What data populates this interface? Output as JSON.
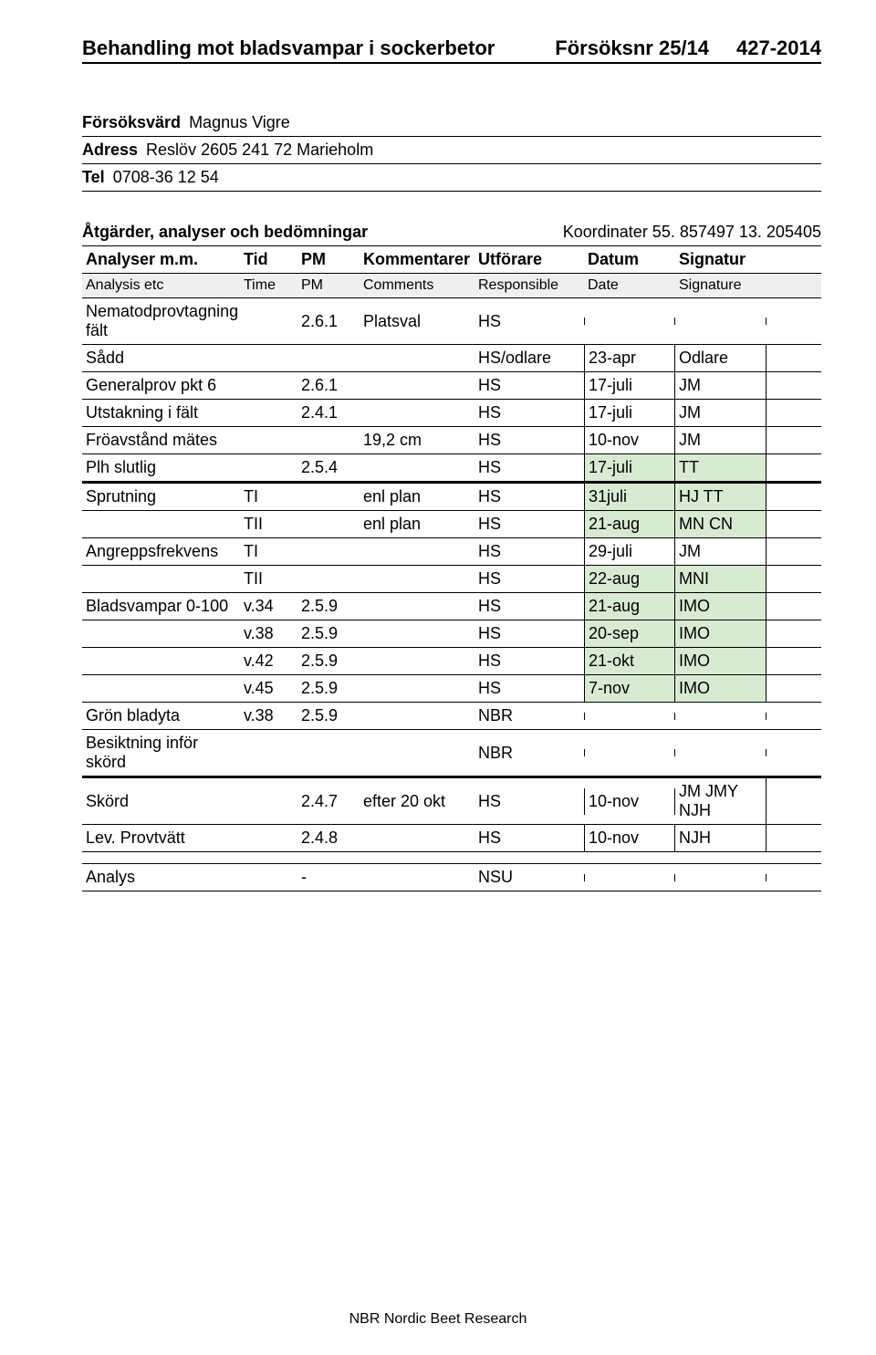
{
  "header": {
    "title": "Behandling mot bladsvampar i sockerbetor",
    "trial_no": "Försöksnr 25/14",
    "code": "427-2014"
  },
  "info": {
    "host_label": "Försöksvärd",
    "host_value": "Magnus Vigre",
    "address_label": "Adress",
    "address_value": "Reslöv 2605  241 72 Marieholm",
    "tel_label": "Tel",
    "tel_value": "0708-36 12 54"
  },
  "section": {
    "left": "Åtgärder, analyser och bedömningar",
    "right": "Koordinater 55. 857497  13. 205405"
  },
  "table_header": {
    "c1": "Analyser m.m.",
    "c2": "Tid",
    "c3": "PM",
    "c4": "Kommentarer",
    "c5": "Utförare",
    "c6": "Datum",
    "c7": "Signatur"
  },
  "table_subheader": {
    "c1": "Analysis etc",
    "c2": "Time",
    "c3": "PM",
    "c4": "Comments",
    "c5": "Responsible",
    "c6": "Date",
    "c7": "Signature"
  },
  "rows": [
    {
      "c1": "Nematodprovtagning fält",
      "c2": "",
      "c3": "2.6.1",
      "c4": "Platsval",
      "c5": "HS",
      "c6": "",
      "c7": "",
      "hl": false,
      "group": "main"
    },
    {
      "c1": "Sådd",
      "c2": "",
      "c3": "",
      "c4": "",
      "c5": "HS/odlare",
      "c6": "23-apr",
      "c7": "Odlare",
      "hl": false,
      "group": "main"
    },
    {
      "c1": "Generalprov pkt 6",
      "c2": "",
      "c3": "2.6.1",
      "c4": "",
      "c5": "HS",
      "c6": "17-juli",
      "c7": "JM",
      "hl": false,
      "group": "main"
    },
    {
      "c1": "Utstakning i fält",
      "c2": "",
      "c3": "2.4.1",
      "c4": "",
      "c5": "HS",
      "c6": "17-juli",
      "c7": "JM",
      "hl": false,
      "group": "main"
    },
    {
      "c1": "Fröavstånd mätes",
      "c2": "",
      "c3": "",
      "c4": "19,2 cm",
      "c5": "HS",
      "c6": "10-nov",
      "c7": "JM",
      "hl": false,
      "group": "main"
    },
    {
      "c1": "Plh slutlig",
      "c2": "",
      "c3": "2.5.4",
      "c4": "",
      "c5": "HS",
      "c6": "17-juli",
      "c7": "TT",
      "hl": true,
      "group": "main"
    },
    {
      "c1": "Sprutning",
      "c2": "TI",
      "c3": "",
      "c4": "enl plan",
      "c5": "HS",
      "c6": "31juli",
      "c7": "HJ TT",
      "hl": true,
      "group": "second",
      "thickTop": true
    },
    {
      "c1": "",
      "c2": "TII",
      "c3": "",
      "c4": "enl plan",
      "c5": "HS",
      "c6": "21-aug",
      "c7": "MN CN",
      "hl": true,
      "group": "second"
    },
    {
      "c1": "Angreppsfrekvens",
      "c2": "TI",
      "c3": "",
      "c4": "",
      "c5": "HS",
      "c6": "29-juli",
      "c7": "JM",
      "hl": false,
      "group": "second"
    },
    {
      "c1": "",
      "c2": "TII",
      "c3": "",
      "c4": "",
      "c5": "HS",
      "c6": "22-aug",
      "c7": "MNI",
      "hl": true,
      "group": "second"
    },
    {
      "c1": "Bladsvampar 0-100",
      "c2": "v.34",
      "c3": "2.5.9",
      "c4": "",
      "c5": "HS",
      "c6": "21-aug",
      "c7": "IMO",
      "hl": true,
      "group": "second"
    },
    {
      "c1": "",
      "c2": "v.38",
      "c3": "2.5.9",
      "c4": "",
      "c5": "HS",
      "c6": "20-sep",
      "c7": "IMO",
      "hl": true,
      "group": "second"
    },
    {
      "c1": "",
      "c2": "v.42",
      "c3": "2.5.9",
      "c4": "",
      "c5": "HS",
      "c6": "21-okt",
      "c7": "IMO",
      "hl": true,
      "group": "second"
    },
    {
      "c1": "",
      "c2": "v.45",
      "c3": "2.5.9",
      "c4": "",
      "c5": "HS",
      "c6": "7-nov",
      "c7": "IMO",
      "hl": true,
      "group": "second"
    },
    {
      "c1": "Grön bladyta",
      "c2": "v.38",
      "c3": "2.5.9",
      "c4": "",
      "c5": "NBR",
      "c6": "",
      "c7": "",
      "hl": false,
      "group": "second"
    },
    {
      "c1": "Besiktning inför skörd",
      "c2": "",
      "c3": "",
      "c4": "",
      "c5": "NBR",
      "c6": "",
      "c7": "",
      "hl": false,
      "group": "second"
    }
  ],
  "skord_rows": [
    {
      "c1": "Skörd",
      "c2": "",
      "c3": "2.4.7",
      "c4": "efter 20 okt",
      "c5": "HS",
      "c6": "10-nov",
      "c7": "JM JMY NJH",
      "hl": false
    },
    {
      "c1": "Lev. Provtvätt",
      "c2": "",
      "c3": "2.4.8",
      "c4": "",
      "c5": "HS",
      "c6": "10-nov",
      "c7": "NJH",
      "hl": false
    }
  ],
  "analys_row": {
    "c1": "Analys",
    "c2": "",
    "c3": "-",
    "c4": "",
    "c5": "NSU",
    "c6": "",
    "c7": "",
    "hl": false
  },
  "footer": "NBR Nordic Beet Research"
}
